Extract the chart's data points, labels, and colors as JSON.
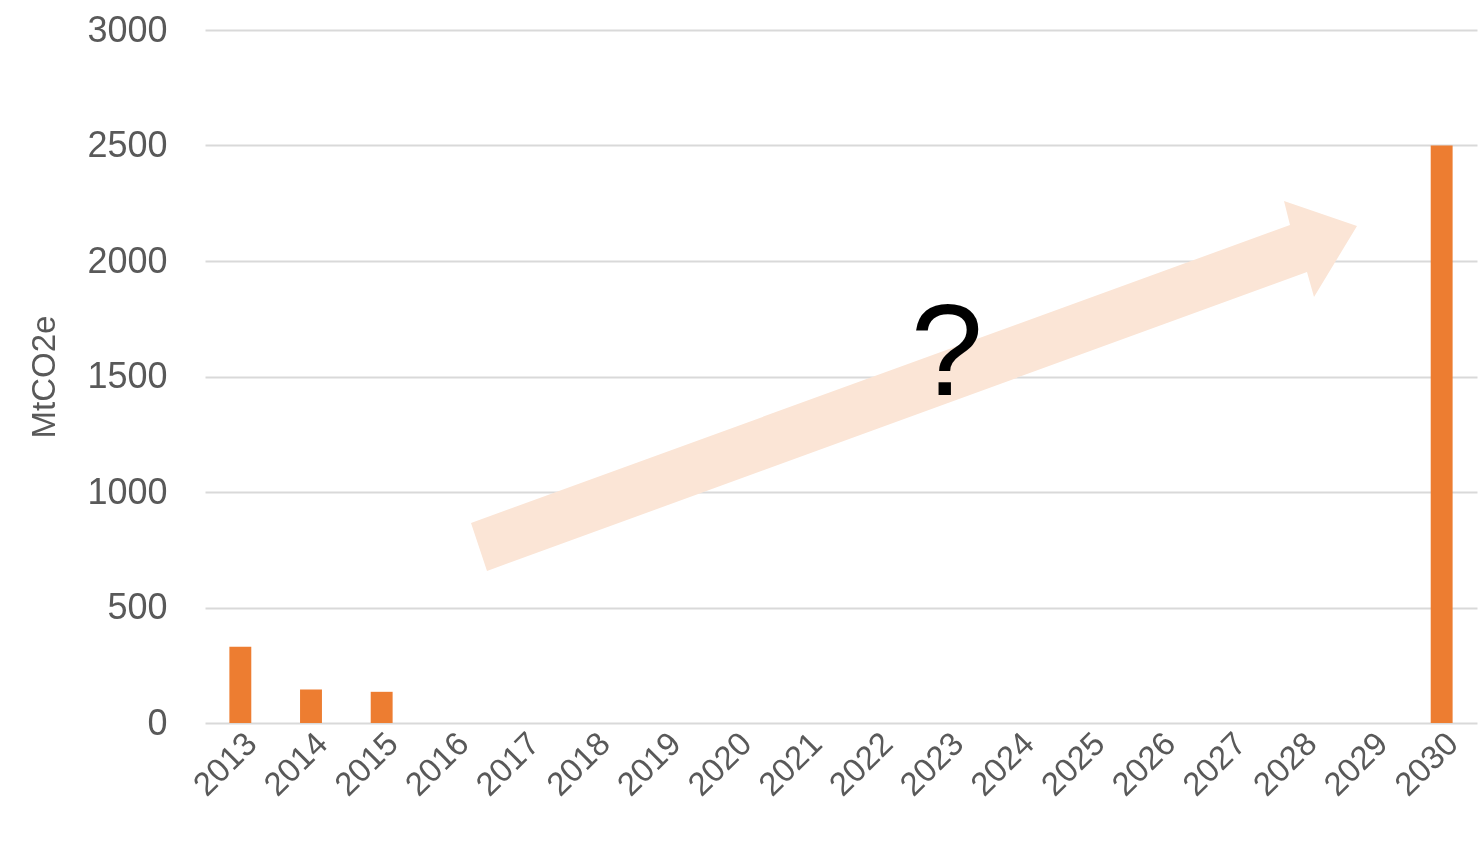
{
  "chart_data": {
    "type": "bar",
    "ylabel": "MtCO2e",
    "categories": [
      "2013",
      "2014",
      "2015",
      "2016",
      "2017",
      "2018",
      "2019",
      "2020",
      "2021",
      "2022",
      "2023",
      "2024",
      "2025",
      "2026",
      "2027",
      "2028",
      "2029",
      "2030"
    ],
    "values": [
      330,
      145,
      135,
      null,
      null,
      null,
      null,
      null,
      null,
      null,
      null,
      null,
      null,
      null,
      null,
      null,
      null,
      2500
    ],
    "color": "#ed7d31",
    "ylim": [
      0,
      3000
    ],
    "yticks": [
      0,
      500,
      1000,
      1500,
      2000,
      2500,
      3000
    ],
    "grid": "y",
    "annotations": [
      "?"
    ]
  }
}
